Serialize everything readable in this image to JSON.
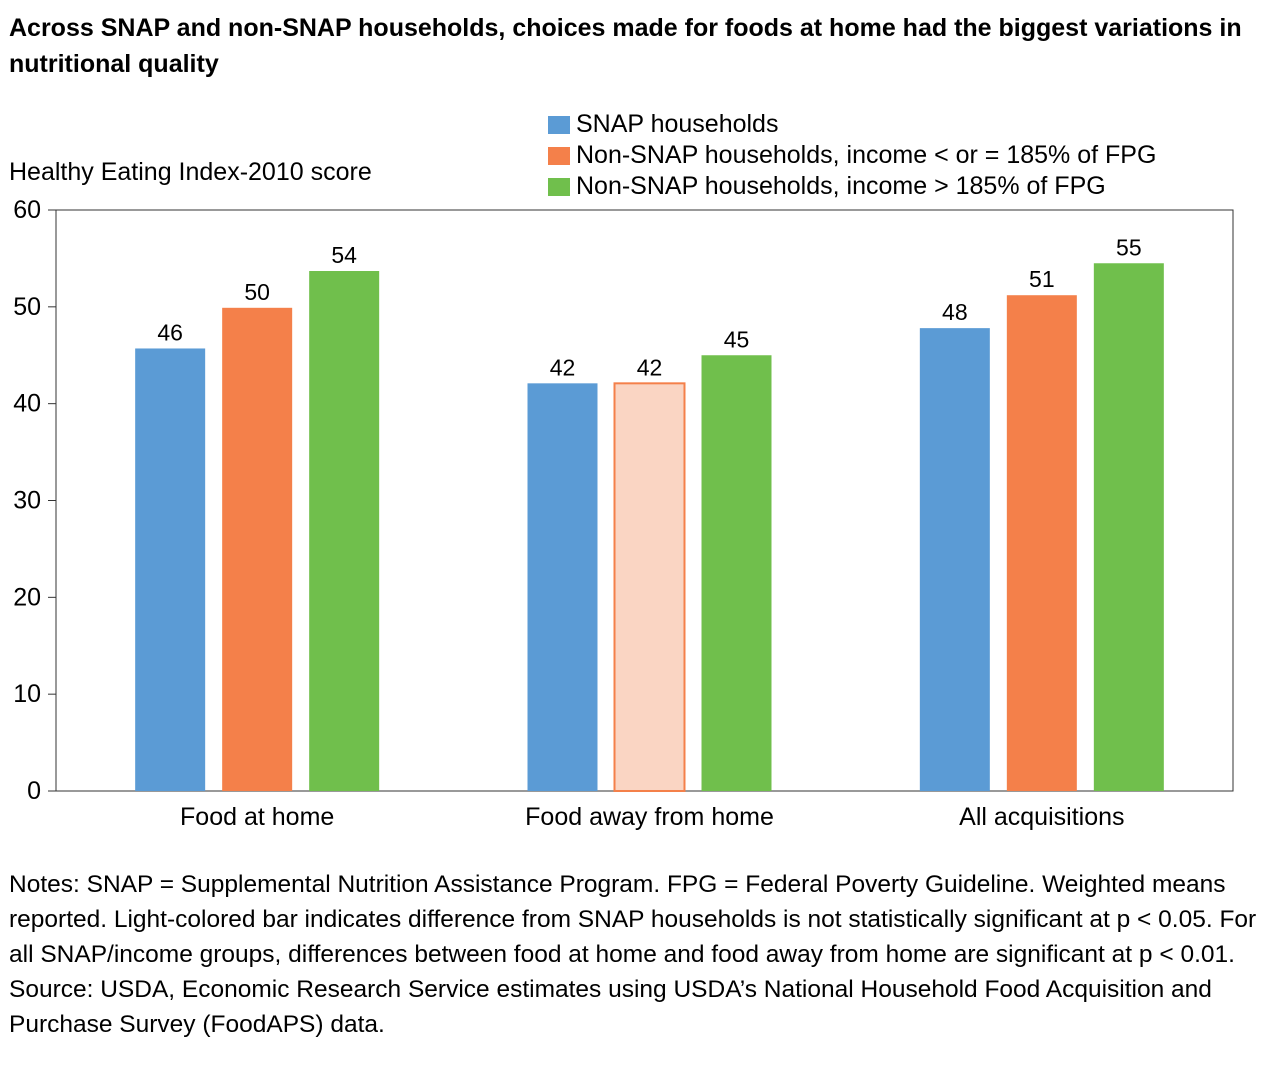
{
  "header": {
    "title": "Across SNAP and non-SNAP households, choices made for foods at home had the biggest variations in nutritional quality"
  },
  "chart_data": {
    "type": "bar",
    "ylabel": "Healthy Eating Index-2010 score",
    "ylim": [
      0,
      60
    ],
    "yticks": [
      0,
      10,
      20,
      30,
      40,
      50,
      60
    ],
    "categories": [
      "Food at home",
      "Food away from home",
      "All acquisitions"
    ],
    "series": [
      {
        "name": "SNAP households",
        "color": "#5b9bd5",
        "values": [
          45.7,
          42.1,
          47.8
        ],
        "labels": [
          "46",
          "42",
          "48"
        ],
        "light": [
          false,
          false,
          false
        ]
      },
      {
        "name": "Non-SNAP households, income < or = 185% of FPG",
        "color": "#f4804a",
        "values": [
          49.9,
          42.1,
          51.2
        ],
        "labels": [
          "50",
          "42",
          "51"
        ],
        "light": [
          false,
          true,
          false
        ]
      },
      {
        "name": "Non-SNAP households, income > 185% of FPG",
        "color": "#70bf4c",
        "values": [
          53.7,
          45.0,
          54.5
        ],
        "labels": [
          "54",
          "45",
          "55"
        ],
        "light": [
          false,
          false,
          false
        ]
      }
    ],
    "light_color": "#fad5c3",
    "legend_position": "top-right",
    "grid": false
  },
  "notes": {
    "line1": "Notes: SNAP = Supplemental Nutrition Assistance Program. FPG = Federal Poverty Guideline. Weighted means reported. Light-colored bar indicates difference from SNAP households is not statistically significant at p < 0.05. For all SNAP/income groups, differences between food at home and food away from home are significant at p < 0.01.",
    "source": "Source: USDA, Economic Research Service estimates using USDA’s National Household Food Acquisition and Purchase Survey (FoodAPS) data."
  }
}
